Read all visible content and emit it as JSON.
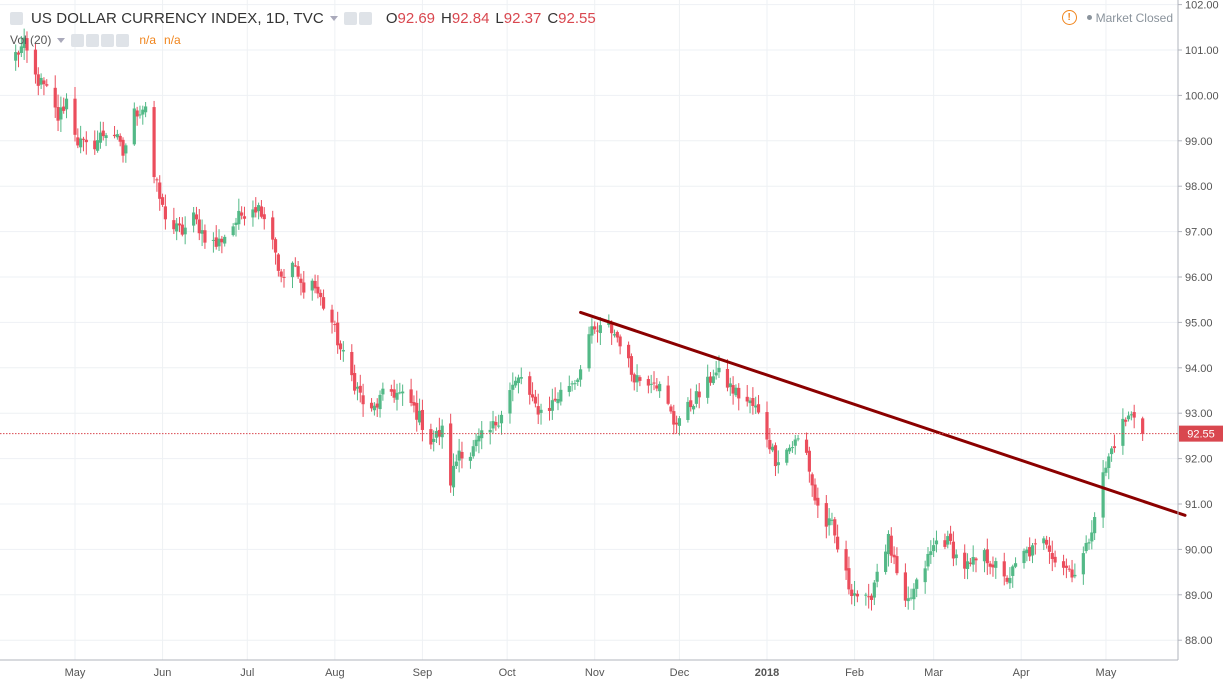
{
  "header": {
    "symbol": "US DOLLAR CURRENCY INDEX, 1D, TVC",
    "open_label": "O",
    "open": "92.69",
    "high_label": "H",
    "high": "92.84",
    "low_label": "L",
    "low": "92.37",
    "close_label": "C",
    "close": "92.55"
  },
  "volume": {
    "label": "Vol (20)",
    "val1": "n/a",
    "val2": "n/a"
  },
  "status": {
    "text": "Market Closed"
  },
  "colors": {
    "up": "#53b987",
    "down": "#eb4d5c",
    "trendline": "#8b0000",
    "price_line": "#d9474f",
    "grid": "#eef1f4"
  },
  "chart_data": {
    "type": "candlestick",
    "ylim": [
      87.6,
      102.0
    ],
    "y_ticks": [
      "88.00",
      "89.00",
      "90.00",
      "91.00",
      "92.00",
      "93.00",
      "94.00",
      "95.00",
      "96.00",
      "97.00",
      "98.00",
      "99.00",
      "100.00",
      "101.00",
      "102.00"
    ],
    "x_ticks": [
      {
        "label": "May",
        "date": "2017-05-01"
      },
      {
        "label": "Jun",
        "date": "2017-06-01"
      },
      {
        "label": "Jul",
        "date": "2017-07-01"
      },
      {
        "label": "Aug",
        "date": "2017-08-01"
      },
      {
        "label": "Sep",
        "date": "2017-09-01"
      },
      {
        "label": "Oct",
        "date": "2017-10-01"
      },
      {
        "label": "Nov",
        "date": "2017-11-01"
      },
      {
        "label": "Dec",
        "date": "2017-12-01"
      },
      {
        "label": "2018",
        "date": "2018-01-01"
      },
      {
        "label": "Feb",
        "date": "2018-02-01"
      },
      {
        "label": "Mar",
        "date": "2018-03-01"
      },
      {
        "label": "Apr",
        "date": "2018-04-01"
      },
      {
        "label": "May",
        "date": "2018-05-01"
      }
    ],
    "first_date": "2017-04-10",
    "last_price": "92.55",
    "close_path": [
      [
        "2017-04-10",
        100.9
      ],
      [
        "2017-04-13",
        101.1
      ],
      [
        "2017-04-17",
        100.4
      ],
      [
        "2017-04-21",
        100.1
      ],
      [
        "2017-04-25",
        99.5
      ],
      [
        "2017-04-28",
        99.9
      ],
      [
        "2017-05-02",
        99.0
      ],
      [
        "2017-05-06",
        98.8
      ],
      [
        "2017-05-10",
        99.1
      ],
      [
        "2017-05-14",
        99.3
      ],
      [
        "2017-05-18",
        98.7
      ],
      [
        "2017-05-22",
        99.6
      ],
      [
        "2017-05-26",
        99.8
      ],
      [
        "2017-05-29",
        98.2
      ],
      [
        "2017-06-01",
        97.5
      ],
      [
        "2017-06-04",
        97.1
      ],
      [
        "2017-06-08",
        97.0
      ],
      [
        "2017-06-12",
        97.3
      ],
      [
        "2017-06-16",
        96.9
      ],
      [
        "2017-06-20",
        96.7
      ],
      [
        "2017-06-24",
        97.0
      ],
      [
        "2017-06-28",
        97.3
      ],
      [
        "2017-07-02",
        97.6
      ],
      [
        "2017-07-06",
        97.5
      ],
      [
        "2017-07-10",
        96.9
      ],
      [
        "2017-07-13",
        95.9
      ],
      [
        "2017-07-17",
        96.3
      ],
      [
        "2017-07-20",
        95.8
      ],
      [
        "2017-07-24",
        95.9
      ],
      [
        "2017-07-27",
        95.5
      ],
      [
        "2017-07-31",
        95.0
      ],
      [
        "2017-08-03",
        94.4
      ],
      [
        "2017-08-07",
        93.8
      ],
      [
        "2017-08-10",
        93.4
      ],
      [
        "2017-08-13",
        92.9
      ],
      [
        "2017-08-17",
        93.3
      ],
      [
        "2017-08-20",
        93.5
      ],
      [
        "2017-08-24",
        93.4
      ],
      [
        "2017-08-28",
        93.2
      ],
      [
        "2017-08-31",
        92.9
      ],
      [
        "2017-09-04",
        92.4
      ],
      [
        "2017-09-08",
        92.6
      ],
      [
        "2017-09-11",
        91.5
      ],
      [
        "2017-09-14",
        92.2
      ],
      [
        "2017-09-18",
        92.1
      ],
      [
        "2017-09-21",
        92.4
      ],
      [
        "2017-09-25",
        92.6
      ],
      [
        "2017-09-28",
        92.9
      ],
      [
        "2017-10-02",
        93.5
      ],
      [
        "2017-10-06",
        93.8
      ],
      [
        "2017-10-10",
        93.2
      ],
      [
        "2017-10-14",
        93.0
      ],
      [
        "2017-10-18",
        93.3
      ],
      [
        "2017-10-22",
        93.6
      ],
      [
        "2017-10-26",
        93.8
      ],
      [
        "2017-10-29",
        94.7
      ],
      [
        "2017-11-02",
        94.8
      ],
      [
        "2017-11-06",
        94.9
      ],
      [
        "2017-11-10",
        94.6
      ],
      [
        "2017-11-14",
        93.9
      ],
      [
        "2017-11-18",
        93.7
      ],
      [
        "2017-11-22",
        93.8
      ],
      [
        "2017-11-26",
        93.3
      ],
      [
        "2017-11-29",
        92.8
      ],
      [
        "2017-12-03",
        93.0
      ],
      [
        "2017-12-06",
        93.3
      ],
      [
        "2017-12-10",
        93.5
      ],
      [
        "2017-12-13",
        93.9
      ],
      [
        "2017-12-16",
        93.8
      ],
      [
        "2017-12-20",
        93.5
      ],
      [
        "2017-12-24",
        93.3
      ],
      [
        "2017-12-28",
        93.1
      ],
      [
        "2018-01-01",
        92.5
      ],
      [
        "2018-01-04",
        92.0
      ],
      [
        "2018-01-08",
        92.2
      ],
      [
        "2018-01-12",
        92.4
      ],
      [
        "2018-01-15",
        92.1
      ],
      [
        "2018-01-18",
        91.1
      ],
      [
        "2018-01-21",
        90.6
      ],
      [
        "2018-01-24",
        90.5
      ],
      [
        "2018-01-27",
        89.8
      ],
      [
        "2018-01-30",
        89.2
      ],
      [
        "2018-02-02",
        89.0
      ],
      [
        "2018-02-06",
        88.8
      ],
      [
        "2018-02-10",
        89.8
      ],
      [
        "2018-02-13",
        90.2
      ],
      [
        "2018-02-16",
        89.4
      ],
      [
        "2018-02-19",
        88.7
      ],
      [
        "2018-02-23",
        89.2
      ],
      [
        "2018-02-27",
        89.8
      ],
      [
        "2018-03-03",
        90.3
      ],
      [
        "2018-03-07",
        90.1
      ],
      [
        "2018-03-10",
        89.7
      ],
      [
        "2018-03-14",
        89.6
      ],
      [
        "2018-03-18",
        89.9
      ],
      [
        "2018-03-22",
        89.7
      ],
      [
        "2018-03-26",
        89.3
      ],
      [
        "2018-03-29",
        89.5
      ],
      [
        "2018-04-02",
        89.9
      ],
      [
        "2018-04-06",
        90.0
      ],
      [
        "2018-04-10",
        90.2
      ],
      [
        "2018-04-13",
        89.8
      ],
      [
        "2018-04-17",
        89.6
      ],
      [
        "2018-04-20",
        89.5
      ],
      [
        "2018-04-24",
        90.0
      ],
      [
        "2018-04-27",
        90.8
      ],
      [
        "2018-04-30",
        91.6
      ],
      [
        "2018-05-03",
        92.2
      ],
      [
        "2018-05-06",
        92.7
      ],
      [
        "2018-05-09",
        92.9
      ],
      [
        "2018-05-12",
        93.0
      ],
      [
        "2018-05-14",
        92.55
      ]
    ],
    "trendline": {
      "start": [
        "2017-10-27",
        95.22
      ],
      "end": [
        "2018-05-29",
        90.75
      ]
    }
  }
}
